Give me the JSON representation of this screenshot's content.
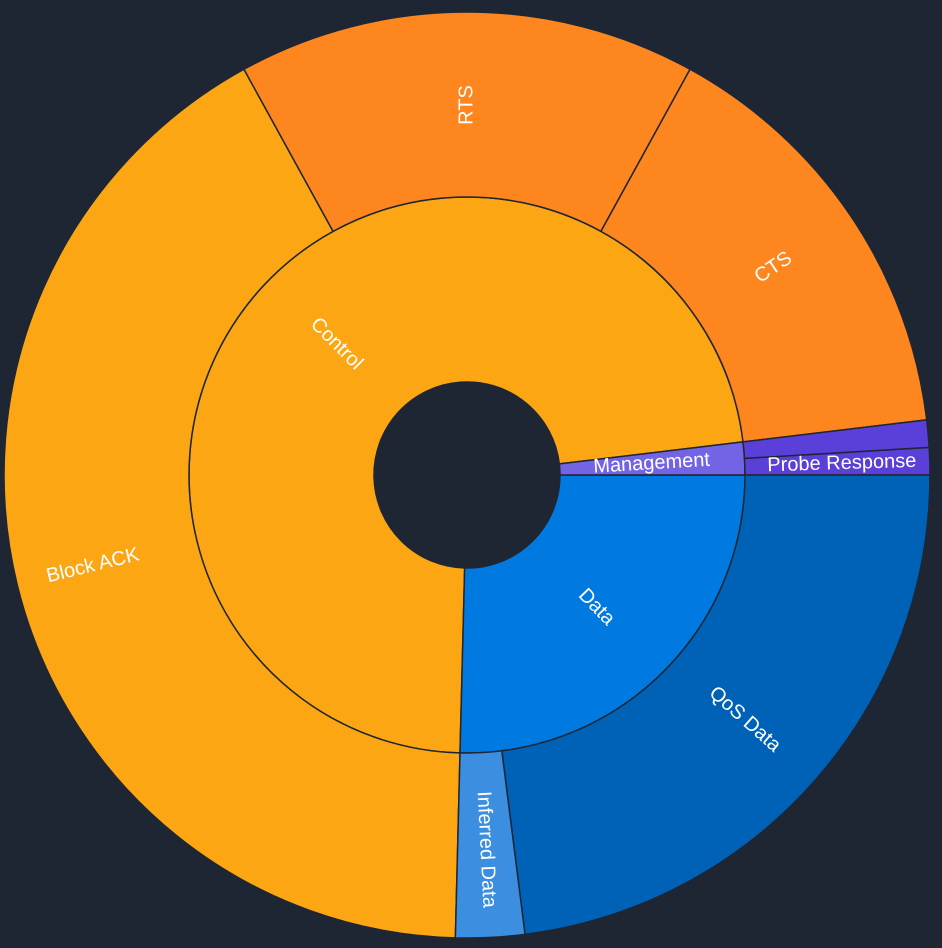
{
  "chart_data": {
    "type": "sunburst",
    "title": "",
    "background": "#1f2633",
    "unit": "percent",
    "inner": [
      {
        "name": "Control",
        "value": 72.7,
        "color": "#fca614"
      },
      {
        "name": "Data",
        "value": 25.4,
        "color": "#0079e1"
      },
      {
        "name": "Management",
        "value": 1.9,
        "color": "#7264e4"
      }
    ],
    "outer": [
      {
        "name": "Block ACK",
        "parent": "Control",
        "value": 41.6,
        "color": "#fca614",
        "label": "Block ACK"
      },
      {
        "name": "RTS",
        "parent": "Control",
        "value": 16.0,
        "color": "#fd861f",
        "label": "RTS"
      },
      {
        "name": "CTS",
        "parent": "Control",
        "value": 15.1,
        "color": "#fd861f",
        "label": "CTS"
      },
      {
        "name": "Probe Response",
        "parent": "Management",
        "value": 0.95,
        "color": "#5a40d9",
        "label": "Probe Response"
      },
      {
        "name": "Management (other)",
        "parent": "Management",
        "value": 0.95,
        "color": "#5a40d9",
        "label": ""
      },
      {
        "name": "QoS Data",
        "parent": "Data",
        "value": 23.0,
        "color": "#0062b7",
        "label": "QoS Data"
      },
      {
        "name": "Inferred Data",
        "parent": "Data",
        "value": 2.4,
        "color": "#3b8ee0",
        "label": "Inferred Data"
      }
    ]
  }
}
